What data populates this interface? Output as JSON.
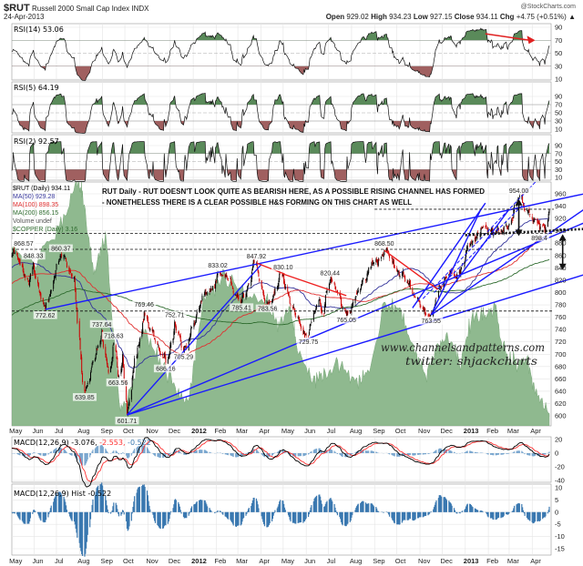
{
  "header": {
    "symbol": "$RUT",
    "name": "Russell 2000 Small Cap Index",
    "exchange": "INDX",
    "date": "24-Apr-2013",
    "credit": "@StockCharts.com",
    "open_label": "Open",
    "open": "929.02",
    "high_label": "High",
    "high": "934.23",
    "low_label": "Low",
    "low": "927.15",
    "close_label": "Close",
    "close": "934.11",
    "chg_label": "Chg",
    "chg": "+4.75 (+0.51%)",
    "chg_icon": "triangle-up-icon"
  },
  "colors": {
    "up": "#000000",
    "down": "#cc0000",
    "ma50": "#33339a",
    "ma100": "#e03030",
    "ma200": "#2e6b2e",
    "copper": "#8fb98f",
    "rsi_over": "#5a8a5a",
    "rsi_under": "#a06060",
    "macd": "#000000",
    "signal": "#ff3030",
    "hist": "#3a78b0",
    "trend": "#1a1aff"
  },
  "panels": {
    "rsi14": {
      "label": "RSI(14) 53.06",
      "ticks": [
        90,
        70,
        50,
        30,
        10
      ]
    },
    "rsi5": {
      "label": "RSI(5) 64.19",
      "ticks": [
        90,
        70,
        50,
        30,
        10
      ]
    },
    "rsi2": {
      "label": "RSI(2) 92.57",
      "ticks": [
        90,
        70,
        50,
        30,
        10
      ]
    },
    "price": {
      "legend": [
        "$RUT (Daily) 934.11",
        "MA(50) 929.28",
        "MA(100) 898.35",
        "MA(200) 856.15",
        "Volume undef",
        "$COPPER (Daily) 3.16"
      ],
      "note_line1": "RUT Daily - RUT DOESN'T LOOK QUITE AS BEARISH HERE, AS A POSSIBLE RISING CHANNEL HAS FORMED",
      "note_line2": "- NONETHELESS THERE IS A CLEAR POSSIBLE H&S FORMING ON THIS CHART AS WELL",
      "watermark1": "www.channelsandpatterns.com",
      "watermark2": "twitter: shjackcharts"
    },
    "macd": {
      "label_main": "MACD(12,26,9) -3.076,",
      "label_signal": " -2.553,",
      "label_hist": " -0.522",
      "ticks": [
        20,
        0,
        -20,
        -40
      ]
    },
    "hist": {
      "label": "MACD(12,26,9) Hist -0.522",
      "ticks": [
        10,
        5,
        0,
        -5,
        -10,
        -15
      ]
    }
  },
  "chart_data": {
    "type": "line",
    "title": "$RUT Russell 2000 Small Cap Index INDX",
    "x_range": [
      "2011-05-02",
      "2013-04-24"
    ],
    "x_ticks": [
      [
        "2011-05-01",
        "May"
      ],
      [
        "2011-06-01",
        "Jun"
      ],
      [
        "2011-07-01",
        "Jul"
      ],
      [
        "2011-08-01",
        "Aug"
      ],
      [
        "2011-09-01",
        "Sep"
      ],
      [
        "2011-10-01",
        "Oct"
      ],
      [
        "2011-11-01",
        "Nov"
      ],
      [
        "2011-12-01",
        "Dec"
      ],
      [
        "2012-01-01",
        "2012"
      ],
      [
        "2012-02-01",
        "Feb"
      ],
      [
        "2012-03-01",
        "Mar"
      ],
      [
        "2012-04-01",
        "Apr"
      ],
      [
        "2012-05-01",
        "May"
      ],
      [
        "2012-06-01",
        "Jun"
      ],
      [
        "2012-07-01",
        "Jul"
      ],
      [
        "2012-08-01",
        "Aug"
      ],
      [
        "2012-09-01",
        "Sep"
      ],
      [
        "2012-10-01",
        "Oct"
      ],
      [
        "2012-11-01",
        "Nov"
      ],
      [
        "2012-12-01",
        "Dec"
      ],
      [
        "2013-01-01",
        "2013"
      ],
      [
        "2013-02-01",
        "Feb"
      ],
      [
        "2013-03-01",
        "Mar"
      ],
      [
        "2013-04-01",
        "Apr"
      ]
    ],
    "price_ylim": [
      590,
      965
    ],
    "price_ticks": [
      960,
      940,
      920,
      900,
      880,
      860,
      840,
      820,
      800,
      780,
      760,
      740,
      720,
      700,
      680,
      660,
      640,
      620,
      600
    ],
    "price_path": [
      [
        "2011-05-02",
        860
      ],
      [
        "2011-05-04",
        868.57
      ],
      [
        "2011-05-25",
        812
      ],
      [
        "2011-05-31",
        848.33
      ],
      [
        "2011-06-16",
        772.62
      ],
      [
        "2011-07-07",
        860.37
      ],
      [
        "2011-07-25",
        826
      ],
      [
        "2011-08-08",
        639.85
      ],
      [
        "2011-08-31",
        737.64
      ],
      [
        "2011-09-09",
        670
      ],
      [
        "2011-09-16",
        718.63
      ],
      [
        "2011-09-22",
        663.56
      ],
      [
        "2011-09-28",
        700
      ],
      [
        "2011-10-04",
        601.71
      ],
      [
        "2011-10-27",
        769.46
      ],
      [
        "2011-11-08",
        740
      ],
      [
        "2011-11-25",
        686.16
      ],
      [
        "2011-12-07",
        752.71
      ],
      [
        "2011-12-19",
        705.29
      ],
      [
        "2012-01-10",
        780
      ],
      [
        "2012-02-03",
        833.02
      ],
      [
        "2012-03-06",
        785.41
      ],
      [
        "2012-03-26",
        847.92
      ],
      [
        "2012-04-10",
        783.56
      ],
      [
        "2012-05-01",
        830.1
      ],
      [
        "2012-06-04",
        729.75
      ],
      [
        "2012-06-19",
        790
      ],
      [
        "2012-06-25",
        765
      ],
      [
        "2012-07-03",
        820.44
      ],
      [
        "2012-07-25",
        765.05
      ],
      [
        "2012-08-20",
        820
      ],
      [
        "2012-09-14",
        868.5
      ],
      [
        "2012-10-01",
        835
      ],
      [
        "2012-10-15",
        818
      ],
      [
        "2012-11-16",
        763.55
      ],
      [
        "2012-12-10",
        830
      ],
      [
        "2012-12-31",
        850
      ],
      [
        "2013-01-25",
        905
      ],
      [
        "2013-02-20",
        900
      ],
      [
        "2013-03-14",
        954.0
      ],
      [
        "2013-04-02",
        915
      ],
      [
        "2013-04-18",
        898.4
      ],
      [
        "2013-04-24",
        934.11
      ]
    ],
    "annotations": [
      [
        "2011-05-04",
        868.57,
        "868.57"
      ],
      [
        "2011-05-31",
        848.33,
        "848.33"
      ],
      [
        "2011-06-16",
        772.62,
        "772.62"
      ],
      [
        "2011-07-07",
        860.37,
        "860.37"
      ],
      [
        "2011-08-08",
        639.85,
        "639.85"
      ],
      [
        "2011-08-31",
        737.64,
        "737.64"
      ],
      [
        "2011-09-16",
        718.63,
        "718.63"
      ],
      [
        "2011-09-22",
        663.56,
        "663.56"
      ],
      [
        "2011-10-04",
        601.71,
        "601.71"
      ],
      [
        "2011-10-27",
        769.46,
        "769.46"
      ],
      [
        "2011-11-25",
        686.16,
        "686.16"
      ],
      [
        "2011-12-07",
        752.71,
        "752.71"
      ],
      [
        "2011-12-19",
        705.29,
        "705.29"
      ],
      [
        "2012-02-03",
        833.02,
        "833.02"
      ],
      [
        "2012-03-06",
        785.41,
        "785.41"
      ],
      [
        "2012-03-26",
        847.92,
        "847.92"
      ],
      [
        "2012-04-10",
        783.56,
        "783.56"
      ],
      [
        "2012-05-01",
        830.1,
        "830.10"
      ],
      [
        "2012-06-04",
        729.75,
        "729.75"
      ],
      [
        "2012-07-03",
        820.44,
        "820.44"
      ],
      [
        "2012-07-25",
        765.05,
        "765.05"
      ],
      [
        "2012-09-14",
        868.5,
        "868.50"
      ],
      [
        "2012-11-16",
        763.55,
        "763.55"
      ],
      [
        "2013-03-14",
        954.0,
        "954.00"
      ],
      [
        "2013-04-18",
        898.4,
        "898.4"
      ]
    ],
    "copper": [
      [
        "2011-05-02",
        4.2
      ],
      [
        "2011-06-01",
        4.09
      ],
      [
        "2011-07-05",
        4.32
      ],
      [
        "2011-07-28",
        4.6
      ],
      [
        "2011-08-05",
        4.54
      ],
      [
        "2011-08-20",
        4.03
      ],
      [
        "2011-09-05",
        4.29
      ],
      [
        "2011-09-25",
        3.18
      ],
      [
        "2011-10-10",
        3.3
      ],
      [
        "2011-10-25",
        3.69
      ],
      [
        "2011-11-15",
        3.52
      ],
      [
        "2011-12-10",
        3.3
      ],
      [
        "2011-12-25",
        3.24
      ],
      [
        "2012-01-15",
        3.86
      ],
      [
        "2012-02-10",
        4.03
      ],
      [
        "2012-03-10",
        3.92
      ],
      [
        "2012-04-10",
        3.86
      ],
      [
        "2012-04-25",
        3.69
      ],
      [
        "2012-05-10",
        3.81
      ],
      [
        "2012-05-20",
        3.58
      ],
      [
        "2012-06-10",
        3.35
      ],
      [
        "2012-06-25",
        3.41
      ],
      [
        "2012-07-15",
        3.47
      ],
      [
        "2012-08-10",
        3.35
      ],
      [
        "2012-08-25",
        3.41
      ],
      [
        "2012-09-15",
        3.86
      ],
      [
        "2012-10-05",
        3.81
      ],
      [
        "2012-10-25",
        3.52
      ],
      [
        "2012-11-10",
        3.41
      ],
      [
        "2012-11-25",
        3.58
      ],
      [
        "2012-12-10",
        3.64
      ],
      [
        "2012-12-25",
        3.47
      ],
      [
        "2013-01-10",
        3.75
      ],
      [
        "2013-01-25",
        3.78
      ],
      [
        "2013-02-10",
        3.81
      ],
      [
        "2013-02-25",
        3.52
      ],
      [
        "2013-03-10",
        3.47
      ],
      [
        "2013-03-25",
        3.5
      ],
      [
        "2013-04-05",
        3.3
      ],
      [
        "2013-04-24",
        3.16
      ]
    ],
    "last_values": {
      "close": 934.11,
      "ma50": 929.28,
      "ma100": 898.35,
      "ma200": 856.15,
      "copper": 3.16,
      "rsi14": 53.06,
      "rsi5": 64.19,
      "rsi2": 92.57,
      "macd": -3.076,
      "signal": -2.553,
      "hist": -0.522
    },
    "trendlines": [
      {
        "color": "blue",
        "style": "solid",
        "from": [
          "2011-06-16",
          772.62
        ],
        "to": [
          "2013-06-10",
          960
        ]
      },
      {
        "color": "blue",
        "style": "solid",
        "from": [
          "2011-10-04",
          601.71
        ],
        "to": [
          "2012-04-02",
          846
        ]
      },
      {
        "color": "blue",
        "style": "solid",
        "from": [
          "2011-10-04",
          601.71
        ],
        "to": [
          "2013-06-10",
          829
        ]
      },
      {
        "color": "blue",
        "style": "solid",
        "from": [
          "2011-10-04",
          601.71
        ],
        "to": [
          "2013-06-10",
          913
        ]
      },
      {
        "color": "blue",
        "style": "solid",
        "from": [
          "2012-11-16",
          763.55
        ],
        "to": [
          "2013-06-10",
          935
        ]
      },
      {
        "color": "blue",
        "style": "solid",
        "from": [
          "2012-10-22",
          775
        ],
        "to": [
          "2013-01-28",
          945
        ]
      },
      {
        "color": "blue",
        "style": "solid",
        "from": [
          "2012-11-16",
          763.55
        ],
        "to": [
          "2013-01-22",
          935
        ]
      },
      {
        "color": "blue",
        "style": "solid",
        "from": [
          "2012-11-16",
          763.55
        ],
        "to": [
          "2013-03-01",
          935
        ]
      },
      {
        "color": "blue",
        "style": "dashed",
        "from": [
          "2012-11-05",
          790
        ],
        "to": [
          "2013-04-10",
          985
        ]
      },
      {
        "color": "blue",
        "style": "dashed",
        "from": [
          "2012-11-20",
          800
        ],
        "to": [
          "2013-03-22",
          945
        ]
      },
      {
        "color": "red",
        "style": "solid",
        "from": [
          "2012-03-26",
          847.92
        ],
        "to": [
          "2012-05-03",
          830
        ]
      },
      {
        "color": "red",
        "style": "solid",
        "from": [
          "2012-05-01",
          830
        ],
        "to": [
          "2012-07-25",
          795
        ]
      },
      {
        "color": "red",
        "style": "solid",
        "from": [
          "2012-09-14",
          868.5
        ],
        "to": [
          "2012-11-25",
          805
        ]
      },
      {
        "color": "black",
        "style": "dashed",
        "from": [
          "2012-09-01",
          935
        ],
        "to": [
          "2013-04-30",
          935
        ]
      },
      {
        "color": "black",
        "style": "dashed",
        "from": [
          "2011-05-02",
          896
        ],
        "to": [
          "2013-04-30",
          896
        ]
      },
      {
        "color": "black",
        "style": "dashed",
        "from": [
          "2011-05-02",
          870
        ],
        "to": [
          "2013-04-30",
          870
        ]
      },
      {
        "color": "black",
        "style": "dashed",
        "from": [
          "2011-05-02",
          770
        ],
        "to": [
          "2013-04-30",
          770
        ]
      },
      {
        "color": "black",
        "style": "thick-dotted",
        "from": [
          "2013-01-01",
          893
        ],
        "to": [
          "2013-06-10",
          903
        ]
      }
    ],
    "arrows": [
      {
        "color": "black",
        "from": [
          "2013-03-14",
          950
        ],
        "to": [
          "2013-03-14",
          893
        ]
      },
      {
        "color": "black",
        "from": [
          "2013-05-12",
          893
        ],
        "to": [
          "2013-05-12",
          838
        ]
      }
    ],
    "rsi14_arrow": {
      "color": "red",
      "from": [
        "2013-01-28",
        80
      ],
      "to": [
        "2013-04-05",
        70
      ]
    }
  }
}
